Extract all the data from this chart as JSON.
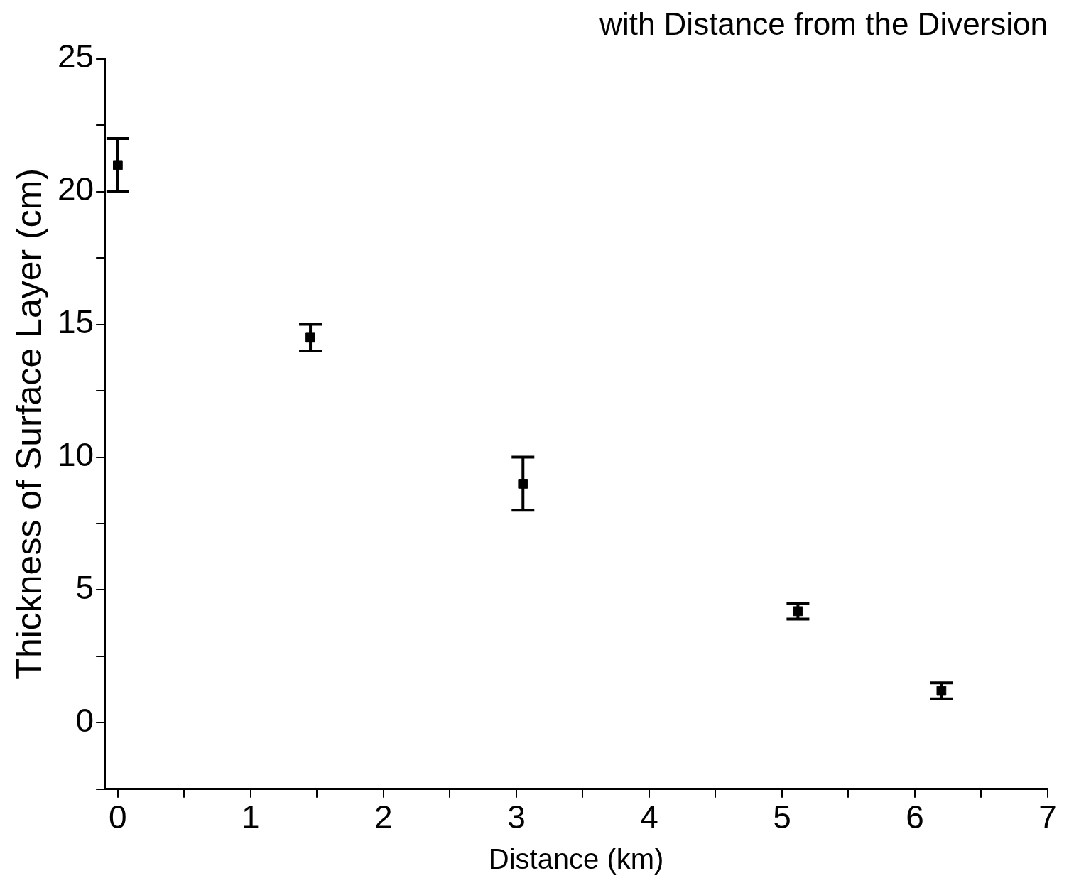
{
  "chart_data": {
    "type": "scatter",
    "title": "with Distance from the Diversion",
    "xlabel": "Distance (km)",
    "ylabel": "Thickness of Surface Layer (cm)",
    "x": [
      0,
      1.45,
      3.05,
      5.12,
      6.2
    ],
    "values": [
      21,
      14.5,
      9,
      4.2,
      1.2
    ],
    "errors": [
      1,
      0.5,
      1,
      0.3,
      0.3
    ],
    "color": "#000000",
    "marker": "square",
    "grid": false,
    "legend": false,
    "xlim": [
      -0.1,
      7
    ],
    "xticks": [
      0,
      {
        "value": 0.5,
        "label": null
      },
      1,
      {
        "value": 1.5,
        "label": null
      },
      2,
      {
        "value": 2.5,
        "label": null
      },
      3,
      {
        "value": 3.5,
        "label": null
      },
      4,
      {
        "value": 4.5,
        "label": null
      },
      5,
      {
        "value": 5.5,
        "label": null
      },
      6,
      {
        "value": 6.5,
        "label": null
      },
      7
    ],
    "ylim": [
      -2.5,
      25
    ],
    "yticks": [
      {
        "value": -2.5,
        "label": null
      },
      0,
      {
        "value": 2.5,
        "label": null
      },
      5,
      {
        "value": 7.5,
        "label": null
      },
      10,
      {
        "value": 12.5,
        "label": null
      },
      15,
      {
        "value": 17.5,
        "label": null
      },
      20,
      {
        "value": 22.5,
        "label": null
      },
      25
    ]
  }
}
